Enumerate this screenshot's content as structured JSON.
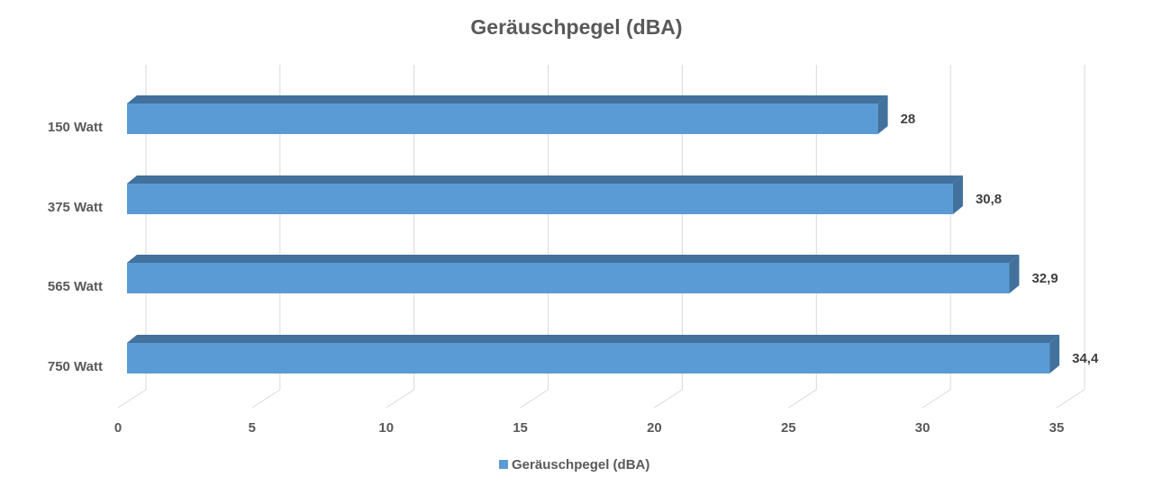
{
  "chart_data": {
    "type": "bar",
    "orientation": "horizontal",
    "title": "Geräuschpegel (dBA)",
    "categories": [
      "150 Watt",
      "375 Watt",
      "565 Watt",
      "750 Watt"
    ],
    "series": [
      {
        "name": "Geräuschpegel (dBA)",
        "values": [
          28,
          30.8,
          32.9,
          34.4
        ],
        "value_labels": [
          "28",
          "30,8",
          "32,9",
          "34,4"
        ]
      }
    ],
    "xlim": [
      0,
      35
    ],
    "ticks": [
      0,
      5,
      10,
      15,
      20,
      25,
      30,
      35
    ],
    "tick_labels": [
      "0",
      "5",
      "10",
      "15",
      "20",
      "25",
      "30",
      "35"
    ],
    "grid": true,
    "legend_position": "bottom",
    "colors": {
      "bar_front": "#5b9bd5",
      "bar_top": "#41719c",
      "bar_side": "#41719c"
    }
  }
}
